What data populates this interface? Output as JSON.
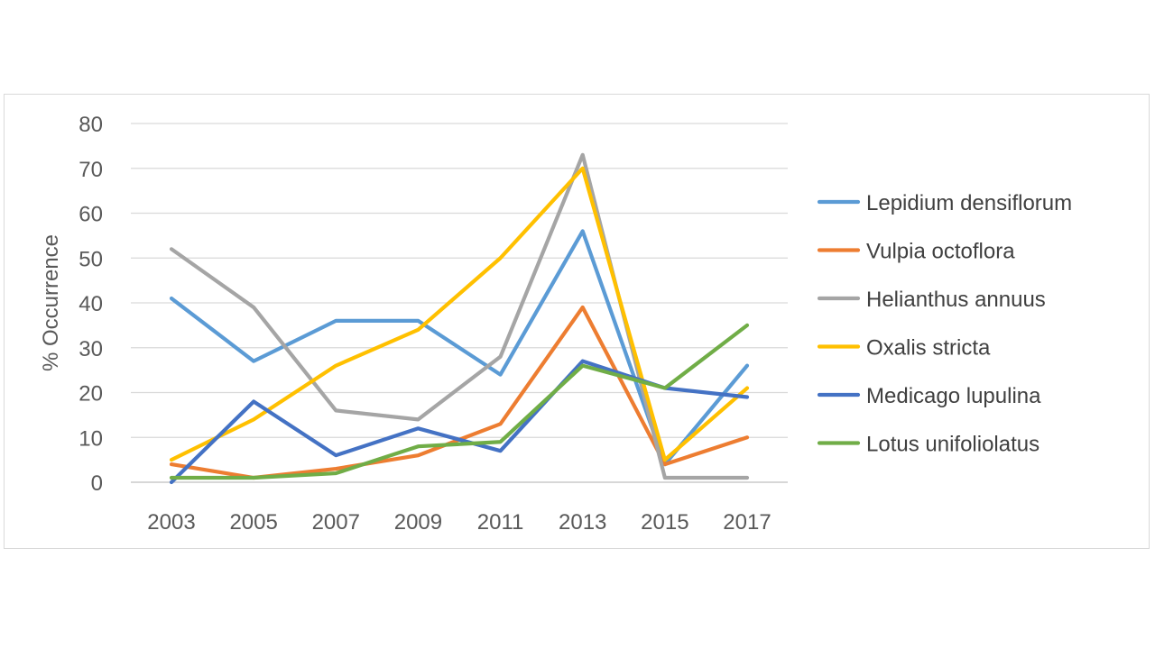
{
  "chart_data": {
    "type": "line",
    "title": "",
    "xlabel": "",
    "ylabel": "% Occurrence",
    "ylim": [
      0,
      80
    ],
    "yticks": [
      "0",
      "10",
      "20",
      "30",
      "40",
      "50",
      "60",
      "70",
      "80"
    ],
    "categories": [
      "2003",
      "2005",
      "2007",
      "2009",
      "2011",
      "2013",
      "2015",
      "2017"
    ],
    "grid": "horizontal",
    "legend_position": "right",
    "series": [
      {
        "name": "Lepidium densiflorum",
        "color": "#5b9bd5",
        "values": [
          41,
          27,
          36,
          36,
          24,
          56,
          4,
          26
        ]
      },
      {
        "name": "Vulpia octoflora",
        "color": "#ed7d31",
        "values": [
          4,
          1,
          3,
          6,
          13,
          39,
          4,
          10
        ]
      },
      {
        "name": "Helianthus annuus",
        "color": "#a5a5a5",
        "values": [
          52,
          39,
          16,
          14,
          28,
          73,
          1,
          1
        ]
      },
      {
        "name": "Oxalis stricta",
        "color": "#ffc000",
        "values": [
          5,
          14,
          26,
          34,
          50,
          70,
          5,
          21
        ]
      },
      {
        "name": "Medicago lupulina",
        "color": "#4472c4",
        "values": [
          0,
          18,
          6,
          12,
          7,
          27,
          21,
          19
        ]
      },
      {
        "name": "Lotus unifoliolatus",
        "color": "#70ad47",
        "values": [
          1,
          1,
          2,
          8,
          9,
          26,
          21,
          35
        ]
      }
    ]
  }
}
